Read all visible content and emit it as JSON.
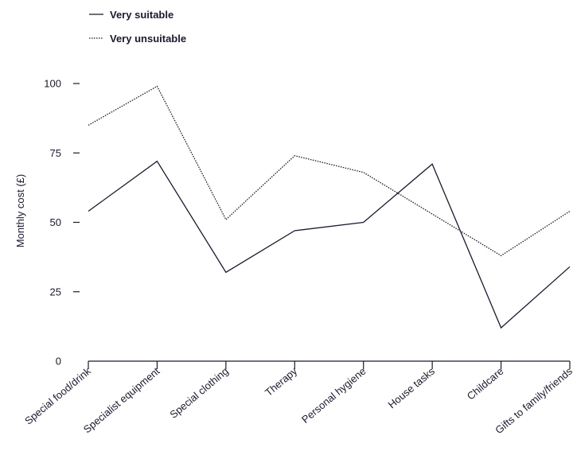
{
  "chart_data": {
    "type": "line",
    "ylabel": "Monthly cost (£)",
    "xlabel": "",
    "ylim": [
      0,
      100
    ],
    "yticks": [
      0,
      25,
      50,
      75,
      100
    ],
    "categories": [
      "Special food/drink",
      "Specialist equipment",
      "Special clothing",
      "Therapy",
      "Personal hygiene",
      "House tasks",
      "Childcare",
      "Gifts to family/friends"
    ],
    "series": [
      {
        "name": "Very suitable",
        "style": "solid",
        "values": [
          54,
          72,
          32,
          47,
          50,
          71,
          12,
          34
        ]
      },
      {
        "name": "Very unsuitable",
        "style": "dotted",
        "values": [
          85,
          99,
          51,
          74,
          68,
          53,
          38,
          54
        ]
      }
    ],
    "legend_position": "top-left",
    "grid": false,
    "line_color": "#1a1a2e"
  }
}
